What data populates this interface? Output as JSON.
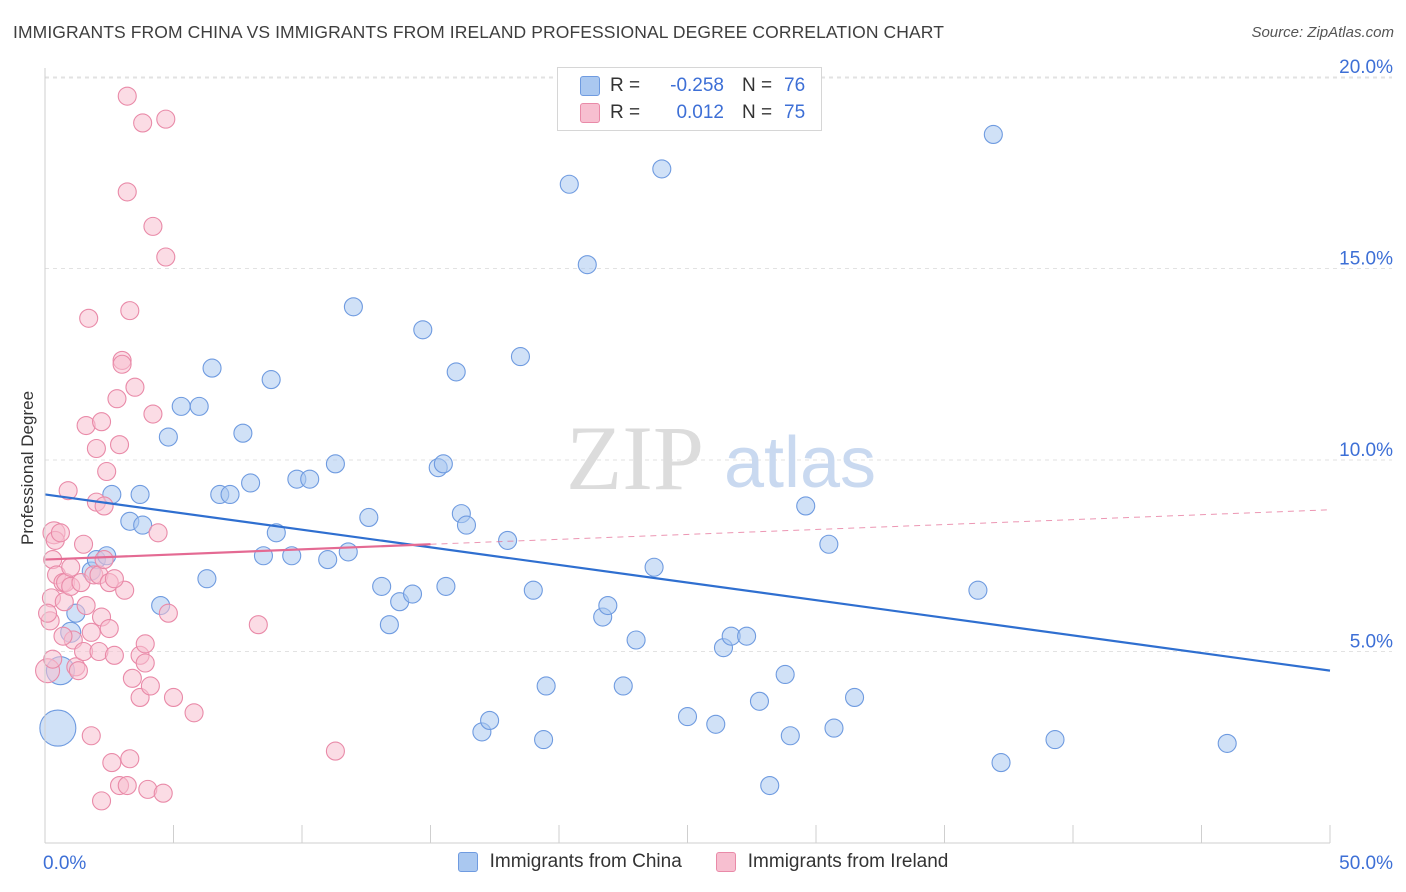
{
  "title": "IMMIGRANTS FROM CHINA VS IMMIGRANTS FROM IRELAND PROFESSIONAL DEGREE CORRELATION CHART",
  "source": "Source: ZipAtlas.com",
  "watermark": {
    "zip": "ZIP",
    "atlas": "atlas"
  },
  "legend": {
    "rows": [
      {
        "r_label": "R =",
        "r_value": "-0.258",
        "n_label": "N =",
        "n_value": "76",
        "color": "#aac8f0",
        "border": "#6f9be0"
      },
      {
        "r_label": "R =",
        "r_value": "0.012",
        "n_label": "N =",
        "n_value": "75",
        "color": "#f7bfd0",
        "border": "#e98aa8"
      }
    ]
  },
  "bottom_legend": [
    {
      "label": "Immigrants from China",
      "color": "#aac8f0",
      "border": "#6f9be0"
    },
    {
      "label": "Immigrants from Ireland",
      "color": "#f7bfd0",
      "border": "#e98aa8"
    }
  ],
  "chart_data": {
    "type": "scatter",
    "title": "IMMIGRANTS FROM CHINA VS IMMIGRANTS FROM IRELAND PROFESSIONAL DEGREE CORRELATION CHART",
    "xlabel": "",
    "ylabel": "Professional Degree",
    "xlim": [
      0,
      50
    ],
    "ylim": [
      0,
      21
    ],
    "x_tick_labels": [
      "0.0%",
      "50.0%"
    ],
    "y_ticks": [
      5,
      10,
      15,
      20
    ],
    "y_tick_labels": [
      "5.0%",
      "10.0%",
      "15.0%",
      "20.0%"
    ],
    "grid": true,
    "series": [
      {
        "name": "Immigrants from China",
        "color": "#6f9be0",
        "fill": "#aac8f0",
        "trend": {
          "x": [
            0,
            50
          ],
          "y": [
            9.1,
            4.5
          ],
          "color": "#2f6fd0"
        },
        "points": [
          [
            0.6,
            4.5,
            14
          ],
          [
            0.5,
            3.0,
            18
          ],
          [
            1.0,
            5.5,
            10
          ],
          [
            1.2,
            6.0,
            9
          ],
          [
            1.8,
            7.1,
            9
          ],
          [
            2.0,
            7.4,
            9
          ],
          [
            2.6,
            9.1,
            9
          ],
          [
            2.4,
            7.5,
            9
          ],
          [
            3.3,
            8.4,
            9
          ],
          [
            3.8,
            8.3,
            9
          ],
          [
            3.7,
            9.1,
            9
          ],
          [
            4.5,
            6.2,
            9
          ],
          [
            4.8,
            10.6,
            9
          ],
          [
            5.3,
            11.4,
            9
          ],
          [
            6.0,
            11.4,
            9
          ],
          [
            6.3,
            6.9,
            9
          ],
          [
            6.5,
            12.4,
            9
          ],
          [
            6.8,
            9.1,
            9
          ],
          [
            7.2,
            9.1,
            9
          ],
          [
            7.7,
            10.7,
            9
          ],
          [
            8.0,
            9.4,
            9
          ],
          [
            8.5,
            7.5,
            9
          ],
          [
            8.8,
            12.1,
            9
          ],
          [
            9.0,
            8.1,
            9
          ],
          [
            9.6,
            7.5,
            9
          ],
          [
            9.8,
            9.5,
            9
          ],
          [
            10.3,
            9.5,
            9
          ],
          [
            11.0,
            7.4,
            9
          ],
          [
            11.3,
            9.9,
            9
          ],
          [
            11.8,
            7.6,
            9
          ],
          [
            12.0,
            14.0,
            9
          ],
          [
            12.6,
            8.5,
            9
          ],
          [
            13.1,
            6.7,
            9
          ],
          [
            13.4,
            5.7,
            9
          ],
          [
            13.8,
            6.3,
            9
          ],
          [
            14.3,
            6.5,
            9
          ],
          [
            14.7,
            13.4,
            9
          ],
          [
            15.3,
            9.8,
            9
          ],
          [
            15.5,
            9.9,
            9
          ],
          [
            15.6,
            6.7,
            9
          ],
          [
            16.0,
            12.3,
            9
          ],
          [
            16.2,
            8.6,
            9
          ],
          [
            16.4,
            8.3,
            9
          ],
          [
            17.0,
            2.9,
            9
          ],
          [
            17.3,
            3.2,
            9
          ],
          [
            18.0,
            7.9,
            9
          ],
          [
            18.5,
            12.7,
            9
          ],
          [
            19.0,
            6.6,
            9
          ],
          [
            19.4,
            2.7,
            9
          ],
          [
            19.5,
            4.1,
            9
          ],
          [
            20.4,
            17.2,
            9
          ],
          [
            21.1,
            15.1,
            9
          ],
          [
            21.7,
            5.9,
            9
          ],
          [
            21.9,
            6.2,
            9
          ],
          [
            22.5,
            4.1,
            9
          ],
          [
            23.0,
            5.3,
            9
          ],
          [
            23.7,
            7.2,
            9
          ],
          [
            24.0,
            17.6,
            9
          ],
          [
            25.0,
            3.3,
            9
          ],
          [
            26.1,
            3.1,
            9
          ],
          [
            26.4,
            5.1,
            9
          ],
          [
            26.7,
            5.4,
            9
          ],
          [
            27.3,
            5.4,
            9
          ],
          [
            27.8,
            3.7,
            9
          ],
          [
            28.2,
            1.5,
            9
          ],
          [
            28.8,
            4.4,
            9
          ],
          [
            29.0,
            2.8,
            9
          ],
          [
            29.6,
            8.8,
            9
          ],
          [
            30.5,
            7.8,
            9
          ],
          [
            30.7,
            3.0,
            9
          ],
          [
            31.5,
            3.8,
            9
          ],
          [
            36.3,
            6.6,
            9
          ],
          [
            36.9,
            18.5,
            9
          ],
          [
            37.2,
            2.1,
            9
          ],
          [
            39.3,
            2.7,
            9
          ],
          [
            46.0,
            2.6,
            9
          ]
        ]
      },
      {
        "name": "Immigrants from Ireland",
        "color": "#e98aa8",
        "fill": "#f7bfd0",
        "trend": {
          "x": [
            0,
            15
          ],
          "y": [
            7.4,
            7.8
          ],
          "color": "#e46a93",
          "dashed_to": [
            50,
            8.7
          ]
        },
        "points": [
          [
            0.1,
            4.5,
            12
          ],
          [
            0.2,
            5.8,
            9
          ],
          [
            0.25,
            6.4,
            9
          ],
          [
            0.3,
            7.4,
            9
          ],
          [
            0.35,
            8.1,
            11
          ],
          [
            0.4,
            7.9,
            9
          ],
          [
            0.45,
            7.0,
            9
          ],
          [
            0.6,
            8.1,
            9
          ],
          [
            0.7,
            6.8,
            9
          ],
          [
            0.75,
            6.3,
            9
          ],
          [
            0.8,
            6.8,
            9
          ],
          [
            0.9,
            9.2,
            9
          ],
          [
            1.0,
            6.7,
            9
          ],
          [
            1.1,
            5.3,
            9
          ],
          [
            1.2,
            4.6,
            9
          ],
          [
            1.3,
            4.5,
            9
          ],
          [
            1.4,
            6.8,
            9
          ],
          [
            1.5,
            5.0,
            9
          ],
          [
            1.5,
            7.8,
            9
          ],
          [
            1.6,
            6.2,
            9
          ],
          [
            1.6,
            10.9,
            9
          ],
          [
            1.7,
            13.7,
            9
          ],
          [
            1.8,
            5.5,
            9
          ],
          [
            1.8,
            2.8,
            9
          ],
          [
            1.9,
            7.0,
            9
          ],
          [
            2.0,
            8.9,
            9
          ],
          [
            2.0,
            10.3,
            9
          ],
          [
            2.1,
            7.0,
            9
          ],
          [
            2.1,
            5.0,
            9
          ],
          [
            2.2,
            5.9,
            9
          ],
          [
            2.2,
            11.0,
            9
          ],
          [
            2.3,
            7.4,
            9
          ],
          [
            2.3,
            8.8,
            9
          ],
          [
            2.4,
            9.7,
            9
          ],
          [
            2.5,
            6.8,
            9
          ],
          [
            2.5,
            5.6,
            9
          ],
          [
            2.6,
            2.1,
            9
          ],
          [
            2.7,
            4.9,
            9
          ],
          [
            2.8,
            11.6,
            9
          ],
          [
            2.9,
            10.4,
            9
          ],
          [
            2.9,
            1.5,
            9
          ],
          [
            3.0,
            12.6,
            9
          ],
          [
            3.0,
            12.5,
            9
          ],
          [
            3.1,
            6.6,
            9
          ],
          [
            3.2,
            1.5,
            9
          ],
          [
            3.2,
            17.0,
            9
          ],
          [
            3.3,
            13.9,
            9
          ],
          [
            3.3,
            2.2,
            9
          ],
          [
            3.4,
            4.3,
            9
          ],
          [
            3.5,
            11.9,
            9
          ],
          [
            3.7,
            4.9,
            9
          ],
          [
            3.7,
            3.8,
            9
          ],
          [
            3.8,
            18.8,
            9
          ],
          [
            3.9,
            4.7,
            9
          ],
          [
            3.9,
            5.2,
            9
          ],
          [
            4.0,
            1.4,
            9
          ],
          [
            4.1,
            4.1,
            9
          ],
          [
            4.2,
            11.2,
            9
          ],
          [
            4.2,
            16.1,
            9
          ],
          [
            4.4,
            8.1,
            9
          ],
          [
            4.6,
            1.3,
            9
          ],
          [
            4.7,
            18.9,
            9
          ],
          [
            4.7,
            15.3,
            9
          ],
          [
            4.8,
            6.0,
            9
          ],
          [
            5.0,
            3.8,
            9
          ],
          [
            2.2,
            1.1,
            9
          ],
          [
            3.2,
            19.5,
            9
          ],
          [
            5.8,
            3.4,
            9
          ],
          [
            8.3,
            5.7,
            9
          ],
          [
            11.3,
            2.4,
            9
          ],
          [
            0.1,
            6.0,
            9
          ],
          [
            0.3,
            4.8,
            9
          ],
          [
            0.7,
            5.4,
            9
          ],
          [
            1.0,
            7.2,
            9
          ],
          [
            2.7,
            6.9,
            9
          ]
        ]
      }
    ]
  }
}
